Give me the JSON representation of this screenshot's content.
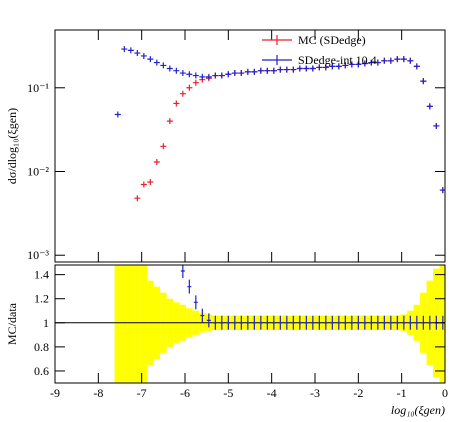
{
  "chart_data": [
    {
      "type": "scatter",
      "log_y": true,
      "ylabel": "dσ/dlog₁₀(ξgen)",
      "xlim": [
        -9,
        0
      ],
      "ylim": [
        0.00083,
        0.49
      ],
      "yticks": [
        {
          "value": 0.001,
          "label": "10⁻³"
        },
        {
          "value": 0.01,
          "label": "10⁻²"
        },
        {
          "value": 0.1,
          "label": "10⁻¹"
        }
      ],
      "x": [
        -7.55,
        -7.4,
        -7.25,
        -7.1,
        -6.95,
        -6.8,
        -6.65,
        -6.5,
        -6.35,
        -6.2,
        -6.05,
        -5.9,
        -5.75,
        -5.6,
        -5.45,
        -5.3,
        -5.15,
        -5.0,
        -4.85,
        -4.7,
        -4.55,
        -4.4,
        -4.25,
        -4.1,
        -3.95,
        -3.8,
        -3.65,
        -3.5,
        -3.35,
        -3.2,
        -3.05,
        -2.9,
        -2.75,
        -2.6,
        -2.45,
        -2.3,
        -2.15,
        -2.0,
        -1.85,
        -1.7,
        -1.55,
        -1.4,
        -1.25,
        -1.1,
        -0.95,
        -0.8,
        -0.65,
        -0.5,
        -0.35,
        -0.2,
        -0.05
      ],
      "series": [
        {
          "name": "MC (SDedge)",
          "color": "#e8202a",
          "values": [
            null,
            null,
            null,
            0.0048,
            0.007,
            0.0075,
            0.013,
            0.02,
            0.04,
            0.065,
            0.085,
            0.1,
            0.115,
            0.125,
            0.13,
            0.14,
            0.14,
            0.145,
            0.15,
            0.15,
            0.155,
            0.155,
            0.16,
            0.16,
            0.16,
            0.165,
            0.165,
            0.165,
            0.17,
            0.17,
            0.17,
            0.175,
            0.175,
            0.18,
            0.18,
            0.185,
            0.19,
            0.19,
            0.195,
            0.2,
            0.2,
            0.21,
            0.21,
            0.22,
            0.22,
            0.21,
            0.18,
            0.12,
            0.06,
            0.035,
            0.006
          ]
        },
        {
          "name": "SDedge-int 10.4",
          "color": "#2222cc",
          "values": [
            0.048,
            0.29,
            0.28,
            0.26,
            0.24,
            0.22,
            0.2,
            0.185,
            0.17,
            0.16,
            0.15,
            0.145,
            0.14,
            0.135,
            0.135,
            0.14,
            0.14,
            0.145,
            0.15,
            0.15,
            0.155,
            0.155,
            0.16,
            0.16,
            0.16,
            0.165,
            0.165,
            0.165,
            0.17,
            0.17,
            0.17,
            0.175,
            0.175,
            0.18,
            0.18,
            0.185,
            0.19,
            0.19,
            0.195,
            0.2,
            0.2,
            0.21,
            0.21,
            0.22,
            0.22,
            0.21,
            0.18,
            0.12,
            0.06,
            0.035,
            0.006
          ]
        }
      ]
    },
    {
      "type": "ratio",
      "xlabel": "log₁₀(ξgen)",
      "ylabel": "MC/data",
      "xlim": [
        -9,
        0
      ],
      "ylim": [
        0.5,
        1.48
      ],
      "xticks": [
        -9,
        -8,
        -7,
        -6,
        -5,
        -4,
        -3,
        -2,
        -1,
        0
      ],
      "yticks": [
        0.6,
        0.8,
        1,
        1.2,
        1.4
      ],
      "reference": 1,
      "band_color": "#ffff00",
      "band": [
        0.6,
        0.6,
        0.6,
        0.6,
        0.5,
        0.35,
        0.3,
        0.25,
        0.2,
        0.17,
        0.15,
        0.12,
        0.1,
        0.08,
        0.07,
        0.06,
        0.06,
        0.06,
        0.06,
        0.06,
        0.06,
        0.06,
        0.06,
        0.06,
        0.06,
        0.06,
        0.06,
        0.06,
        0.06,
        0.06,
        0.06,
        0.06,
        0.06,
        0.06,
        0.06,
        0.06,
        0.06,
        0.06,
        0.06,
        0.06,
        0.06,
        0.06,
        0.06,
        0.06,
        0.07,
        0.1,
        0.15,
        0.25,
        0.35,
        0.45,
        0.5
      ],
      "color": "#2222cc",
      "values": [
        null,
        null,
        null,
        null,
        null,
        null,
        null,
        null,
        null,
        null,
        1.43,
        1.3,
        1.17,
        1.06,
        1.02,
        1,
        1,
        1,
        1,
        1,
        1,
        1,
        1,
        1,
        1,
        1,
        1,
        1,
        1,
        1,
        1,
        1,
        1,
        1,
        1,
        1,
        1,
        1,
        1,
        1,
        1,
        1,
        1,
        1,
        1,
        1,
        1,
        1,
        1,
        1,
        1
      ]
    }
  ]
}
